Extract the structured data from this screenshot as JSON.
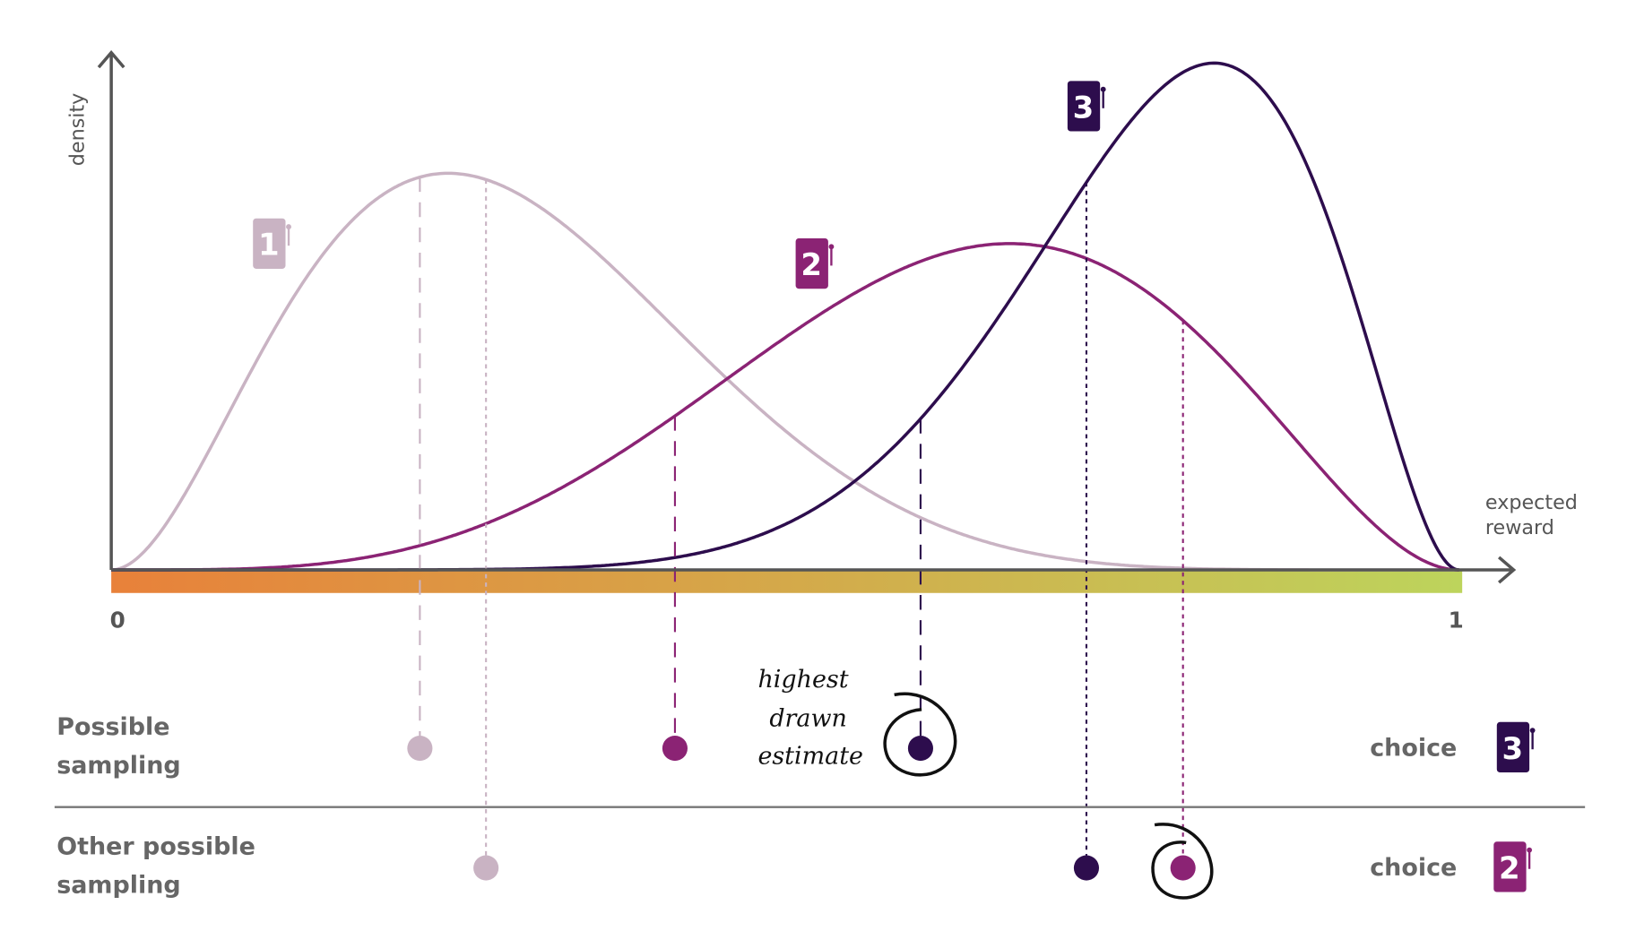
{
  "axis": {
    "y_label": "density",
    "x_label": [
      "expected",
      "reward"
    ],
    "x_min": "0",
    "x_max": "1"
  },
  "arms": [
    {
      "label": "1"
    },
    {
      "label": "2"
    },
    {
      "label": "3"
    }
  ],
  "rows": [
    {
      "label": [
        "Possible",
        "sampling"
      ],
      "choice": "choice",
      "choice_arm": "3"
    },
    {
      "label": [
        "Other possible",
        "sampling"
      ],
      "choice": "choice",
      "choice_arm": "2"
    }
  ],
  "annotation": [
    "highest",
    "drawn",
    "estimate"
  ]
}
